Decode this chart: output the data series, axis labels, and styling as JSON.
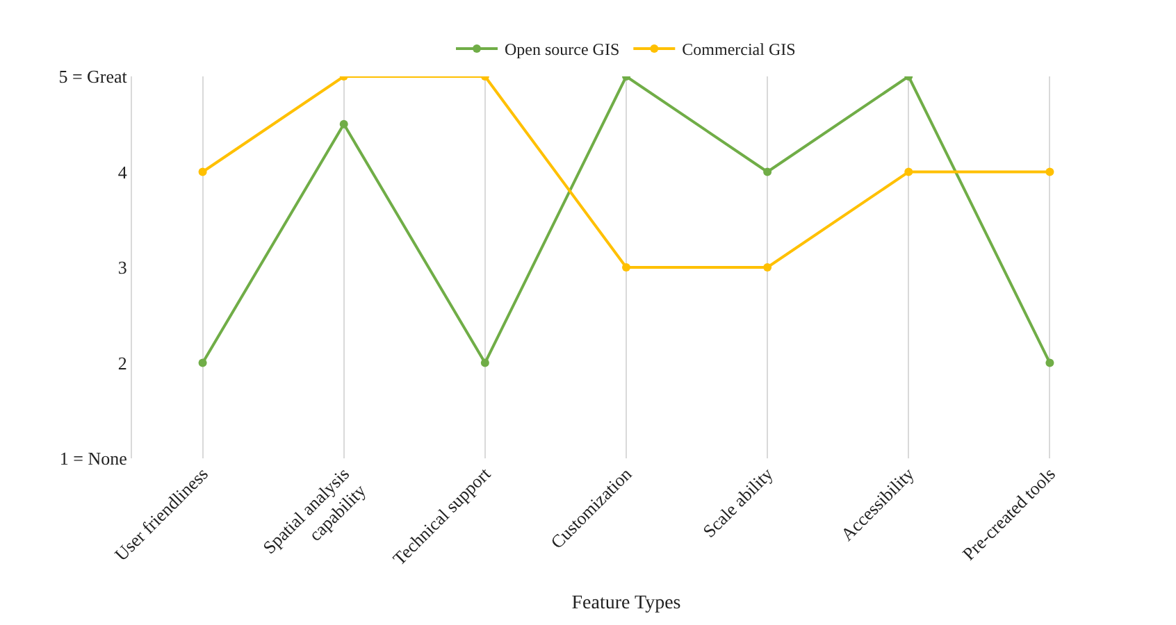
{
  "chart_data": {
    "type": "line",
    "xlabel": "Feature Types",
    "categories": [
      "User friendliness",
      "Spatial analysis capability",
      "Technical support",
      "Customization",
      "Scale ability",
      "Accessibility",
      "Pre-created tools"
    ],
    "series": [
      {
        "name": "Open source GIS",
        "color": "#70ad47",
        "values": [
          2,
          4.5,
          2,
          5,
          4,
          5,
          2
        ]
      },
      {
        "name": "Commercial GIS",
        "color": "#ffc000",
        "values": [
          4,
          5,
          5,
          3,
          3,
          4,
          4
        ]
      }
    ],
    "ylim": [
      1,
      5
    ],
    "yticks": [
      {
        "value": 1,
        "label": "1 = None"
      },
      2,
      3,
      4,
      {
        "value": 5,
        "label": "5 = Great"
      }
    ],
    "grid": "x",
    "legend": "top",
    "marker": "circle",
    "line_style": "solid"
  }
}
